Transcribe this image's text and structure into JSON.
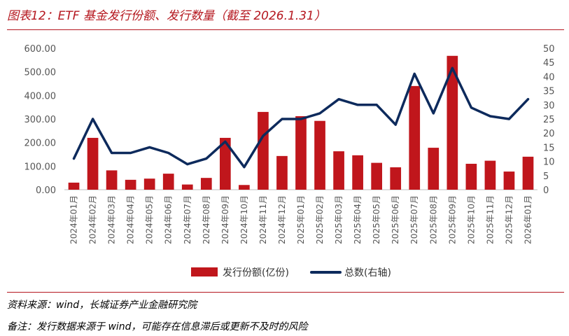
{
  "title": "图表12：ETF 基金发行份额、发行数量（截至 2026.1.31）",
  "source": "资料来源：wind，长城证券产业金融研究院",
  "note": "备注：发行数据来源于 wind，可能存在信息滞后或更新不及时的风险",
  "colors": {
    "bar": "#c0161c",
    "line": "#0d2a5c",
    "accent": "#b5171f"
  },
  "chart_data": {
    "type": "bar+line",
    "categories": [
      "2024年01月",
      "2024年02月",
      "2024年03月",
      "2024年04月",
      "2024年05月",
      "2024年06月",
      "2024年07月",
      "2024年08月",
      "2024年09月",
      "2024年10月",
      "2024年11月",
      "2024年12月",
      "2025年01月",
      "2025年02月",
      "2025年03月",
      "2025年04月",
      "2025年05月",
      "2025年06月",
      "2025年07月",
      "2025年08月",
      "2025年09月",
      "2025年10月",
      "2025年11月",
      "2025年12月",
      "2026年01月"
    ],
    "series": [
      {
        "name": "发行份额(亿份)",
        "type": "bar",
        "axis": "left",
        "values": [
          30,
          220,
          82,
          42,
          47,
          68,
          22,
          50,
          220,
          20,
          330,
          143,
          312,
          292,
          163,
          146,
          114,
          95,
          440,
          178,
          568,
          110,
          123,
          77,
          140
        ]
      },
      {
        "name": "总数(右轴)",
        "type": "line",
        "axis": "right",
        "values": [
          11,
          25,
          13,
          13,
          15,
          13,
          9,
          11,
          17,
          8,
          19,
          25,
          25,
          27,
          32,
          30,
          30,
          23,
          41,
          27,
          43,
          29,
          26,
          25,
          32
        ]
      }
    ],
    "y_left": {
      "min": 0,
      "max": 600,
      "step": 100,
      "ticks": [
        "0.00",
        "100.00",
        "200.00",
        "300.00",
        "400.00",
        "500.00",
        "600.00"
      ]
    },
    "y_right": {
      "min": 0,
      "max": 50,
      "step": 5,
      "ticks": [
        "0",
        "5",
        "10",
        "15",
        "20",
        "25",
        "30",
        "35",
        "40",
        "45",
        "50"
      ]
    },
    "legend_position": "bottom",
    "grid": false
  }
}
